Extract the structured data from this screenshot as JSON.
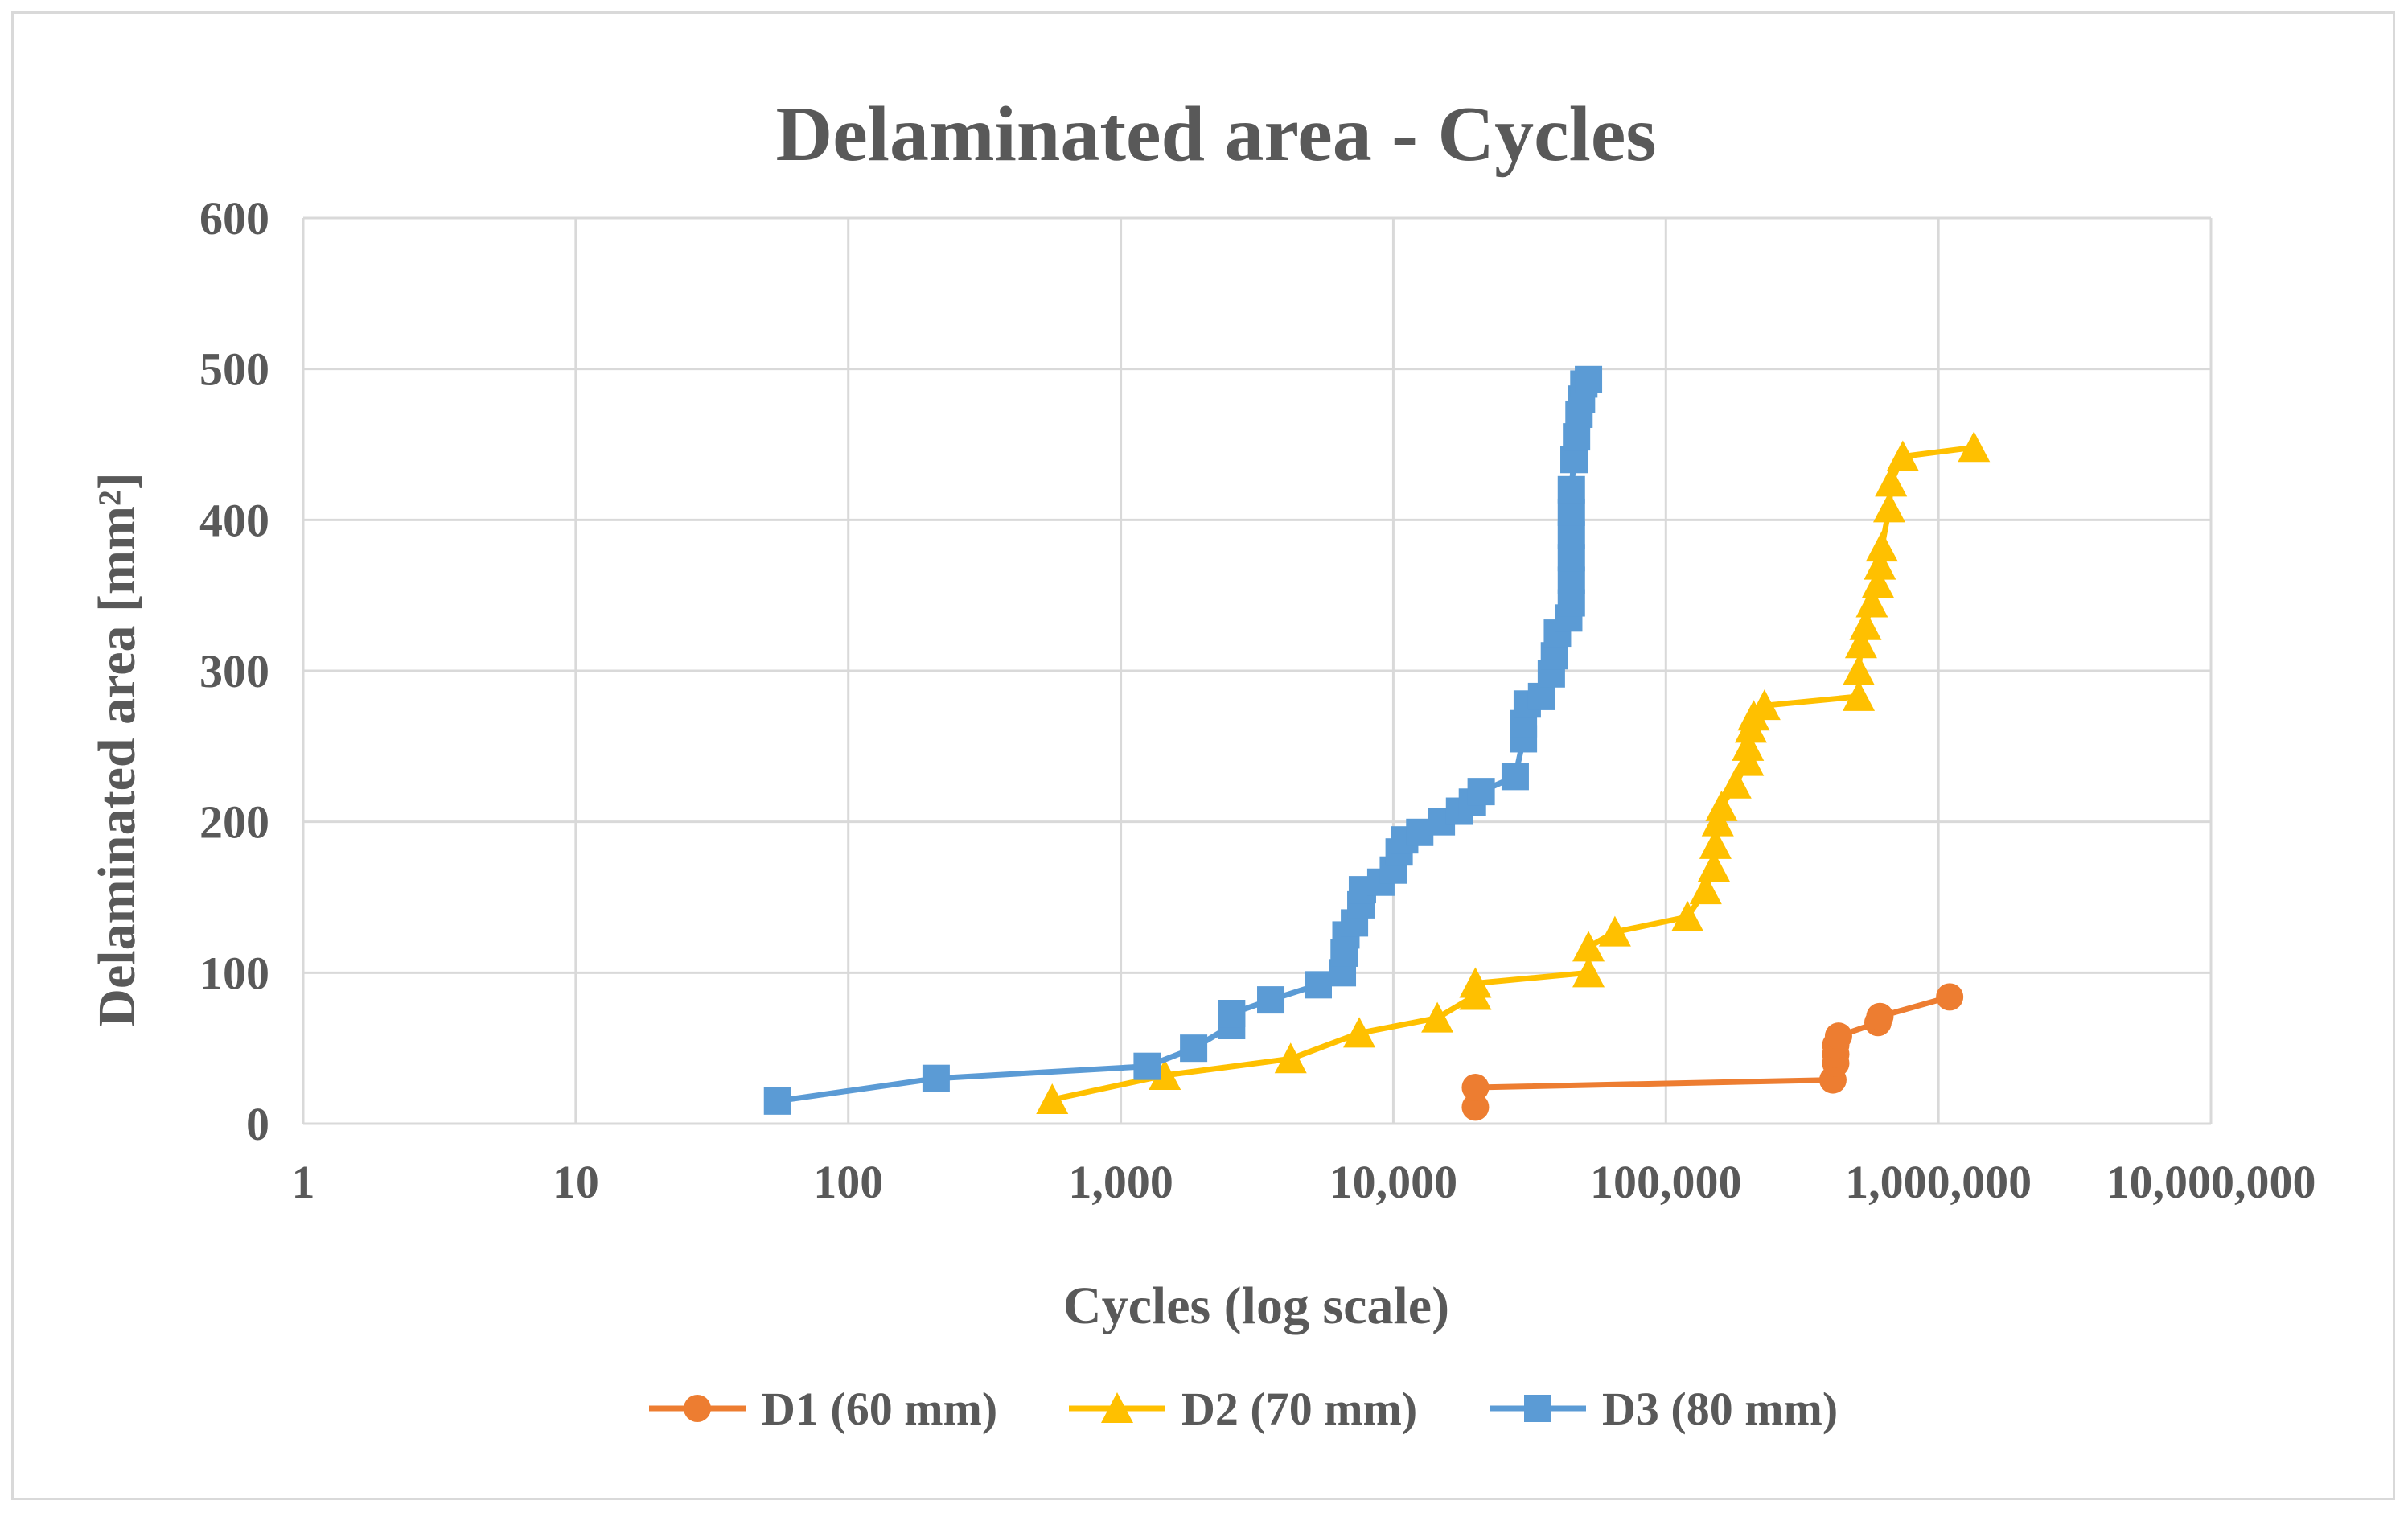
{
  "chart_data": {
    "type": "line",
    "title": "Delaminated area - Cycles",
    "xlabel": "Cycles (log scale)",
    "ylabel": "Delaminated area [mm²]",
    "xscale": "log",
    "xlim": [
      1,
      10000000
    ],
    "ylim": [
      0,
      600
    ],
    "grid": true,
    "x_ticks": [
      1,
      10,
      100,
      1000,
      10000,
      100000,
      1000000,
      10000000
    ],
    "x_tick_labels": [
      "1",
      "10",
      "100",
      "1,000",
      "10,000",
      "100,000",
      "1,000,000",
      "10,000,000"
    ],
    "y_ticks": [
      0,
      100,
      200,
      300,
      400,
      500,
      600
    ],
    "y_tick_labels": [
      "0",
      "100",
      "200",
      "300",
      "400",
      "500",
      "600"
    ],
    "legend_position": "bottom",
    "series": [
      {
        "name": "D1 (60 mm)",
        "color": "#ED7D31",
        "marker": "circle",
        "x": [
          20000,
          20000,
          410000,
          420000,
          420000,
          420000,
          430000,
          600000,
          610000,
          1100000
        ],
        "y": [
          11,
          24,
          29,
          40,
          46,
          52,
          58,
          67,
          71,
          84
        ]
      },
      {
        "name": "D2 (70 mm)",
        "color": "#FFC000",
        "marker": "triangle",
        "x": [
          560,
          1450,
          4200,
          7500,
          14500,
          20000,
          20000,
          52000,
          52000,
          65000,
          120000,
          140000,
          150000,
          152000,
          155000,
          160000,
          180000,
          200000,
          200000,
          205000,
          210000,
          230000,
          510000,
          510000,
          520000,
          540000,
          570000,
          600000,
          610000,
          620000,
          660000,
          670000,
          740000,
          1350000
        ],
        "y": [
          16,
          32,
          43,
          60,
          70,
          85,
          93,
          100,
          117,
          127,
          137,
          155,
          170,
          185,
          200,
          210,
          225,
          240,
          250,
          262,
          270,
          277,
          283,
          300,
          318,
          330,
          345,
          358,
          370,
          382,
          408,
          425,
          442,
          448
        ]
      },
      {
        "name": "D3 (80 mm)",
        "color": "#5B9BD5",
        "marker": "square",
        "x": [
          55,
          210,
          1250,
          1850,
          2550,
          2550,
          3550,
          5300,
          6500,
          6600,
          6700,
          7200,
          7600,
          7700,
          9000,
          10000,
          10500,
          11000,
          12500,
          15000,
          17500,
          19500,
          21000,
          28000,
          30000,
          30000,
          31000,
          35000,
          38000,
          39000,
          40000,
          44000,
          45000,
          45000,
          45000,
          45000,
          45000,
          45000,
          46000,
          47000,
          48000,
          49000,
          50000,
          52000
        ],
        "y": [
          15,
          30,
          38,
          50,
          65,
          73,
          82,
          92,
          100,
          113,
          125,
          133,
          145,
          155,
          160,
          168,
          180,
          188,
          193,
          200,
          207,
          213,
          220,
          230,
          255,
          265,
          278,
          283,
          298,
          310,
          325,
          335,
          345,
          360,
          375,
          390,
          405,
          420,
          440,
          455,
          470,
          480,
          490,
          493
        ]
      }
    ]
  }
}
